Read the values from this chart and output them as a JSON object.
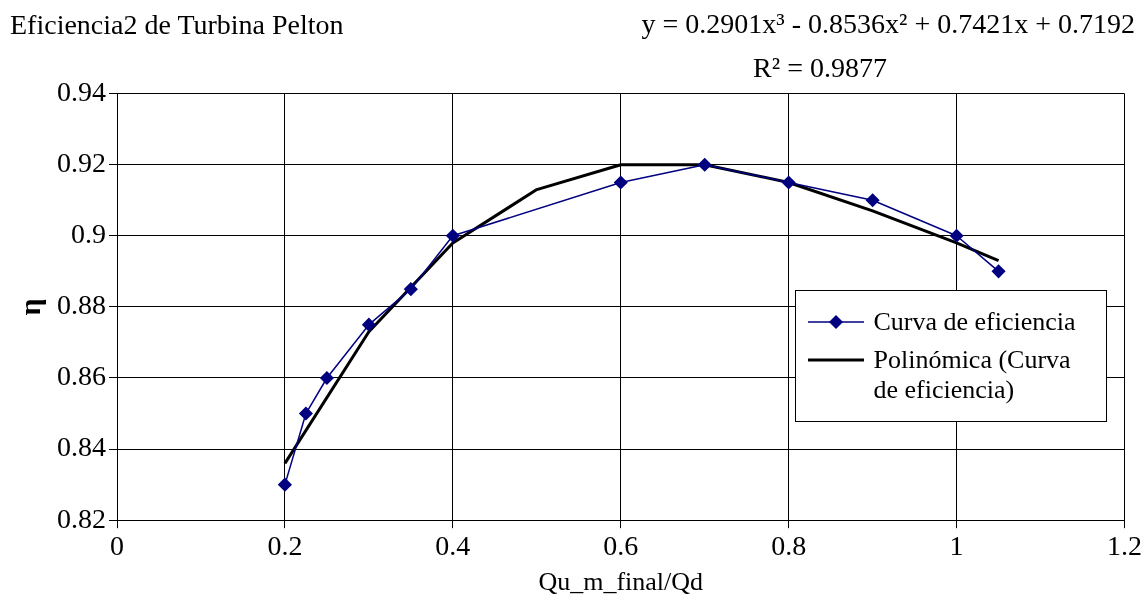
{
  "chart_data": {
    "type": "line",
    "title": "Eficiencia2 de Turbina Pelton",
    "xlabel": "Qu_m_final/Qd",
    "ylabel": "η",
    "annotations": [
      "y = 0.2901x³ - 0.8536x² + 0.7421x + 0.7192",
      "R² = 0.9877"
    ],
    "series": [
      {
        "name": "Curva de eficiencia",
        "color": "#000080",
        "marker": "diamond",
        "x": [
          0.2,
          0.225,
          0.25,
          0.3,
          0.35,
          0.4,
          0.6,
          0.7,
          0.8,
          0.9,
          1.0,
          1.05
        ],
        "values": [
          0.83,
          0.85,
          0.86,
          0.875,
          0.885,
          0.9,
          0.915,
          0.92,
          0.915,
          0.91,
          0.9,
          0.89
        ]
      },
      {
        "name": "Polinómica (Curva de eficiencia)",
        "color": "#000000",
        "marker": "none",
        "x": [
          0.2,
          0.3,
          0.4,
          0.5,
          0.6,
          0.7,
          0.8,
          0.9,
          1.0,
          1.05
        ],
        "values": [
          0.836,
          0.873,
          0.898,
          0.913,
          0.92,
          0.92,
          0.915,
          0.907,
          0.898,
          0.893
        ]
      }
    ],
    "xlim": [
      0,
      1.2
    ],
    "xticks": [
      0,
      0.2,
      0.4,
      0.6,
      0.8,
      1,
      1.2
    ],
    "ylim": [
      0.82,
      0.94
    ],
    "yticks": [
      0.82,
      0.84,
      0.86,
      0.88,
      0.9,
      0.92,
      0.94
    ],
    "grid": true,
    "legend": "right"
  }
}
